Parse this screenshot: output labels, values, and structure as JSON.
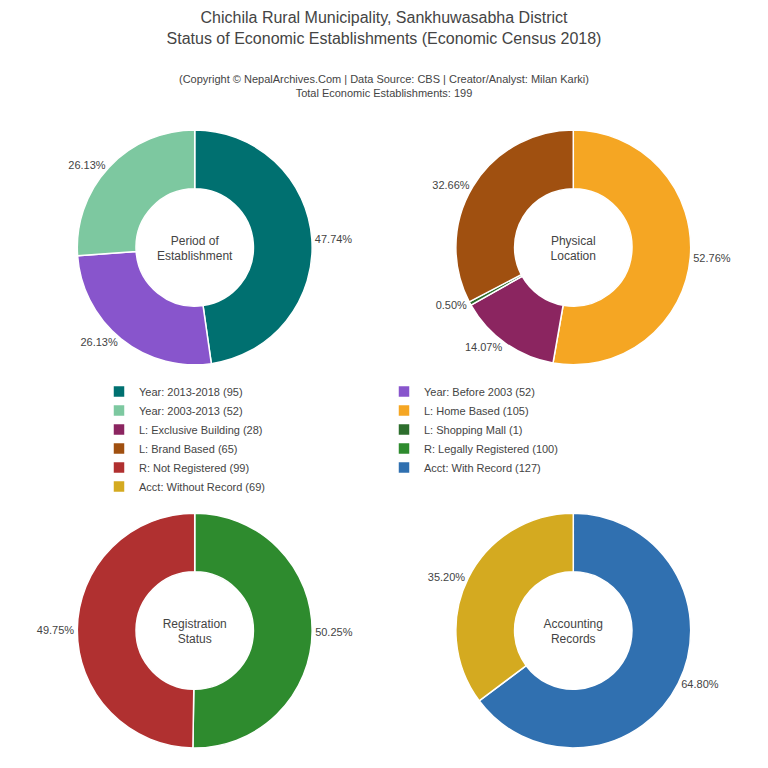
{
  "title": "Chichila Rural Municipality, Sankhuwasabha District\nStatus of Economic Establishments (Economic Census 2018)",
  "subtitle": "(Copyright © NepalArchives.Com | Data Source: CBS | Creator/Analyst: Milan Karki)\nTotal Economic Establishments: 199",
  "legend": "center",
  "chart_data": [
    {
      "type": "pie",
      "title": "Period of\nEstablishment",
      "categories": [
        "Year: 2013-2018 (95)",
        "Year: Before 2003 (52)",
        "Year: 2003-2013 (52)"
      ],
      "values": [
        47.74,
        26.13,
        26.13
      ],
      "value_labels": [
        "47.74%",
        "26.13%",
        "26.13%"
      ],
      "colors": [
        "#007070",
        "#8855cc",
        "#7dc8a0"
      ],
      "data_labels": true
    },
    {
      "type": "pie",
      "title": "Physical\nLocation",
      "categories": [
        "L: Home Based (105)",
        "L: Exclusive Building (28)",
        "L: Shopping Mall (1)",
        "L: Brand Based (65)"
      ],
      "values": [
        52.76,
        14.07,
        0.5,
        32.66
      ],
      "value_labels": [
        "52.76%",
        "14.07%",
        "0.50%",
        "32.66%"
      ],
      "colors": [
        "#f5a623",
        "#8B2560",
        "#2d6e2d",
        "#a05010"
      ],
      "data_labels": true
    },
    {
      "type": "pie",
      "title": "Registration\nStatus",
      "categories": [
        "R: Legally Registered (100)",
        "R: Not Registered (99)"
      ],
      "values": [
        50.25,
        49.75
      ],
      "value_labels": [
        "50.25%",
        "49.75%"
      ],
      "colors": [
        "#2e8b2e",
        "#b03030"
      ],
      "data_labels": true
    },
    {
      "type": "pie",
      "title": "Accounting\nRecords",
      "categories": [
        "Acct: With Record (127)",
        "Acct: Without Record (69)"
      ],
      "values": [
        64.8,
        35.2
      ],
      "value_labels": [
        "64.80%",
        "35.20%"
      ],
      "colors": [
        "#3070b0",
        "#d4aa20"
      ],
      "data_labels": true
    }
  ]
}
